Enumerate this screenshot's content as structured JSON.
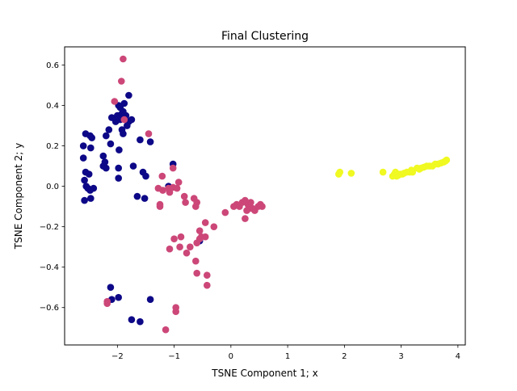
{
  "chart_data": {
    "type": "scatter",
    "title": "Final Clustering",
    "xlabel": "TSNE Component 1; x",
    "ylabel": "TSNE Component 2; y",
    "xlim": [
      -2.93,
      4.13
    ],
    "ylim": [
      -0.785,
      0.69
    ],
    "xticks": [
      -2,
      -1,
      0,
      1,
      2,
      3,
      4
    ],
    "xtick_labels": [
      "−2",
      "−1",
      "0",
      "1",
      "2",
      "3",
      "4"
    ],
    "yticks": [
      -0.6,
      -0.4,
      -0.2,
      0.0,
      0.2,
      0.4,
      0.6
    ],
    "ytick_labels": [
      "−0.6",
      "−0.4",
      "−0.2",
      "0.0",
      "0.2",
      "0.4",
      "0.6"
    ],
    "grid": false,
    "legend": "none",
    "series": [
      {
        "color": "#0d0887",
        "points": [
          [
            -2.6,
            0.2
          ],
          [
            -2.56,
            0.26
          ],
          [
            -2.48,
            0.25
          ],
          [
            -2.45,
            0.24
          ],
          [
            -2.47,
            0.19
          ],
          [
            -2.6,
            0.14
          ],
          [
            -2.56,
            0.07
          ],
          [
            -2.5,
            0.06
          ],
          [
            -2.58,
            0.03
          ],
          [
            -2.55,
            0.0
          ],
          [
            -2.52,
            -0.01
          ],
          [
            -2.48,
            -0.02
          ],
          [
            -2.42,
            -0.01
          ],
          [
            -2.58,
            -0.07
          ],
          [
            -2.47,
            -0.06
          ],
          [
            -2.25,
            0.15
          ],
          [
            -2.22,
            0.12
          ],
          [
            -2.25,
            0.1
          ],
          [
            -2.2,
            0.09
          ],
          [
            -2.2,
            0.25
          ],
          [
            -2.15,
            0.28
          ],
          [
            -2.12,
            0.21
          ],
          [
            -2.1,
            0.34
          ],
          [
            -2.03,
            0.32
          ],
          [
            -2.0,
            0.35
          ],
          [
            -1.98,
            0.4
          ],
          [
            -1.95,
            0.39
          ],
          [
            -1.92,
            0.36
          ],
          [
            -1.9,
            0.37
          ],
          [
            -1.88,
            0.41
          ],
          [
            -1.85,
            0.35
          ],
          [
            -1.83,
            0.3
          ],
          [
            -1.8,
            0.32
          ],
          [
            -1.8,
            0.45
          ],
          [
            -1.75,
            0.33
          ],
          [
            -1.95,
            0.33
          ],
          [
            -1.92,
            0.28
          ],
          [
            -1.9,
            0.26
          ],
          [
            -1.97,
            0.18
          ],
          [
            -1.98,
            0.09
          ],
          [
            -1.98,
            0.04
          ],
          [
            -1.72,
            0.1
          ],
          [
            -1.6,
            0.23
          ],
          [
            -1.42,
            0.22
          ],
          [
            -1.55,
            0.07
          ],
          [
            -1.5,
            0.05
          ],
          [
            -1.52,
            -0.06
          ],
          [
            -1.65,
            -0.05
          ],
          [
            -1.1,
            0.0
          ],
          [
            -1.02,
            0.11
          ],
          [
            -0.55,
            -0.27
          ],
          [
            -2.12,
            -0.5
          ],
          [
            -2.1,
            -0.56
          ],
          [
            -1.98,
            -0.55
          ],
          [
            -1.75,
            -0.66
          ],
          [
            -1.6,
            -0.67
          ],
          [
            -1.42,
            -0.56
          ]
        ]
      },
      {
        "color": "#cc4778",
        "points": [
          [
            -1.9,
            0.63
          ],
          [
            -1.93,
            0.52
          ],
          [
            -2.05,
            0.42
          ],
          [
            -1.88,
            0.33
          ],
          [
            -1.45,
            0.26
          ],
          [
            -1.21,
            0.05
          ],
          [
            -1.28,
            -0.01
          ],
          [
            -1.2,
            -0.02
          ],
          [
            -1.1,
            -0.01
          ],
          [
            -1.08,
            -0.03
          ],
          [
            -1.02,
            -0.005
          ],
          [
            -0.95,
            -0.01
          ],
          [
            -0.92,
            0.02
          ],
          [
            -1.02,
            0.09
          ],
          [
            -1.25,
            -0.09
          ],
          [
            -1.25,
            -0.1
          ],
          [
            -0.82,
            -0.05
          ],
          [
            -0.8,
            -0.08
          ],
          [
            -0.65,
            -0.06
          ],
          [
            -0.6,
            -0.08
          ],
          [
            -0.62,
            -0.1
          ],
          [
            -0.45,
            -0.18
          ],
          [
            -0.3,
            -0.2
          ],
          [
            -0.1,
            -0.13
          ],
          [
            0.05,
            -0.1
          ],
          [
            0.1,
            -0.09
          ],
          [
            0.15,
            -0.1
          ],
          [
            0.2,
            -0.08
          ],
          [
            0.25,
            -0.07
          ],
          [
            0.3,
            -0.09
          ],
          [
            0.35,
            -0.08
          ],
          [
            0.38,
            -0.11
          ],
          [
            0.42,
            -0.12
          ],
          [
            0.48,
            -0.1
          ],
          [
            0.52,
            -0.09
          ],
          [
            0.55,
            -0.1
          ],
          [
            0.28,
            -0.12
          ],
          [
            0.25,
            -0.16
          ],
          [
            0.32,
            -0.11
          ],
          [
            -0.55,
            -0.22
          ],
          [
            -0.52,
            -0.25
          ],
          [
            -0.55,
            -0.26
          ],
          [
            -0.45,
            -0.25
          ],
          [
            -0.6,
            -0.28
          ],
          [
            -0.72,
            -0.3
          ],
          [
            -0.88,
            -0.25
          ],
          [
            -0.9,
            -0.3
          ],
          [
            -1.0,
            -0.26
          ],
          [
            -1.08,
            -0.31
          ],
          [
            -0.78,
            -0.33
          ],
          [
            -0.62,
            -0.37
          ],
          [
            -0.6,
            -0.43
          ],
          [
            -0.42,
            -0.44
          ],
          [
            -0.42,
            -0.49
          ],
          [
            -2.18,
            -0.57
          ],
          [
            -2.18,
            -0.58
          ],
          [
            -0.97,
            -0.6
          ],
          [
            -0.97,
            -0.62
          ],
          [
            -1.15,
            -0.71
          ]
        ]
      },
      {
        "color": "#f0f921",
        "points": [
          [
            1.9,
            0.06
          ],
          [
            1.92,
            0.07
          ],
          [
            2.12,
            0.065
          ],
          [
            2.68,
            0.07
          ],
          [
            2.85,
            0.05
          ],
          [
            2.88,
            0.06
          ],
          [
            2.9,
            0.07
          ],
          [
            2.92,
            0.05
          ],
          [
            2.95,
            0.055
          ],
          [
            2.98,
            0.06
          ],
          [
            3.02,
            0.06
          ],
          [
            3.05,
            0.065
          ],
          [
            3.1,
            0.07
          ],
          [
            3.15,
            0.07
          ],
          [
            3.18,
            0.08
          ],
          [
            3.2,
            0.07
          ],
          [
            3.28,
            0.09
          ],
          [
            3.32,
            0.085
          ],
          [
            3.35,
            0.09
          ],
          [
            3.4,
            0.095
          ],
          [
            3.45,
            0.1
          ],
          [
            3.5,
            0.1
          ],
          [
            3.55,
            0.1
          ],
          [
            3.6,
            0.11
          ],
          [
            3.65,
            0.11
          ],
          [
            3.7,
            0.115
          ],
          [
            3.75,
            0.12
          ],
          [
            3.8,
            0.13
          ],
          [
            3.78,
            0.125
          ]
        ]
      }
    ]
  }
}
